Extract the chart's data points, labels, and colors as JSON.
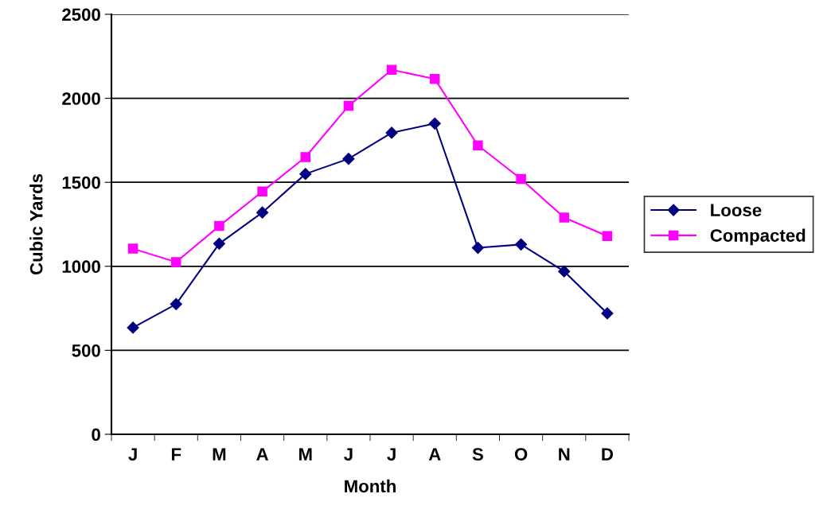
{
  "chart_data": {
    "type": "line",
    "xlabel": "Month",
    "ylabel": "Cubic Yards",
    "categories": [
      "J",
      "F",
      "M",
      "A",
      "M",
      "J",
      "J",
      "A",
      "S",
      "O",
      "N",
      "D"
    ],
    "series": [
      {
        "name": "Loose",
        "color": "#000080",
        "marker": "diamond",
        "values": [
          635,
          775,
          1135,
          1320,
          1550,
          1640,
          1795,
          1850,
          1110,
          1130,
          970,
          720
        ]
      },
      {
        "name": "Compacted",
        "color": "#ff00ff",
        "marker": "square",
        "values": [
          1105,
          1025,
          1240,
          1445,
          1650,
          1955,
          2170,
          2115,
          1720,
          1520,
          1290,
          1180
        ]
      }
    ],
    "ylim": [
      0,
      2500
    ],
    "yticks": [
      0,
      500,
      1000,
      1500,
      2000,
      2500
    ],
    "grid": "y",
    "legend": "right",
    "line_style": "solid"
  }
}
